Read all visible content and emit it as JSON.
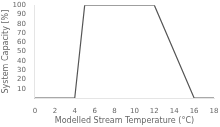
{
  "chart_data": {
    "type": "line",
    "x": [
      0,
      4,
      5,
      12,
      16,
      18
    ],
    "values": [
      0,
      0,
      100,
      100,
      0,
      0
    ],
    "color": "#555555",
    "xlabel": "Modelled Stream Temperature (°C)",
    "ylabel": "System Capacity [%]",
    "xlim": [
      0,
      18
    ],
    "ylim": [
      0,
      100
    ],
    "xticks": [
      0,
      2,
      4,
      6,
      8,
      10,
      12,
      14,
      16,
      18
    ],
    "yticks": [
      10,
      20,
      30,
      40,
      50,
      60,
      70,
      80,
      90,
      100
    ],
    "grid": false
  }
}
